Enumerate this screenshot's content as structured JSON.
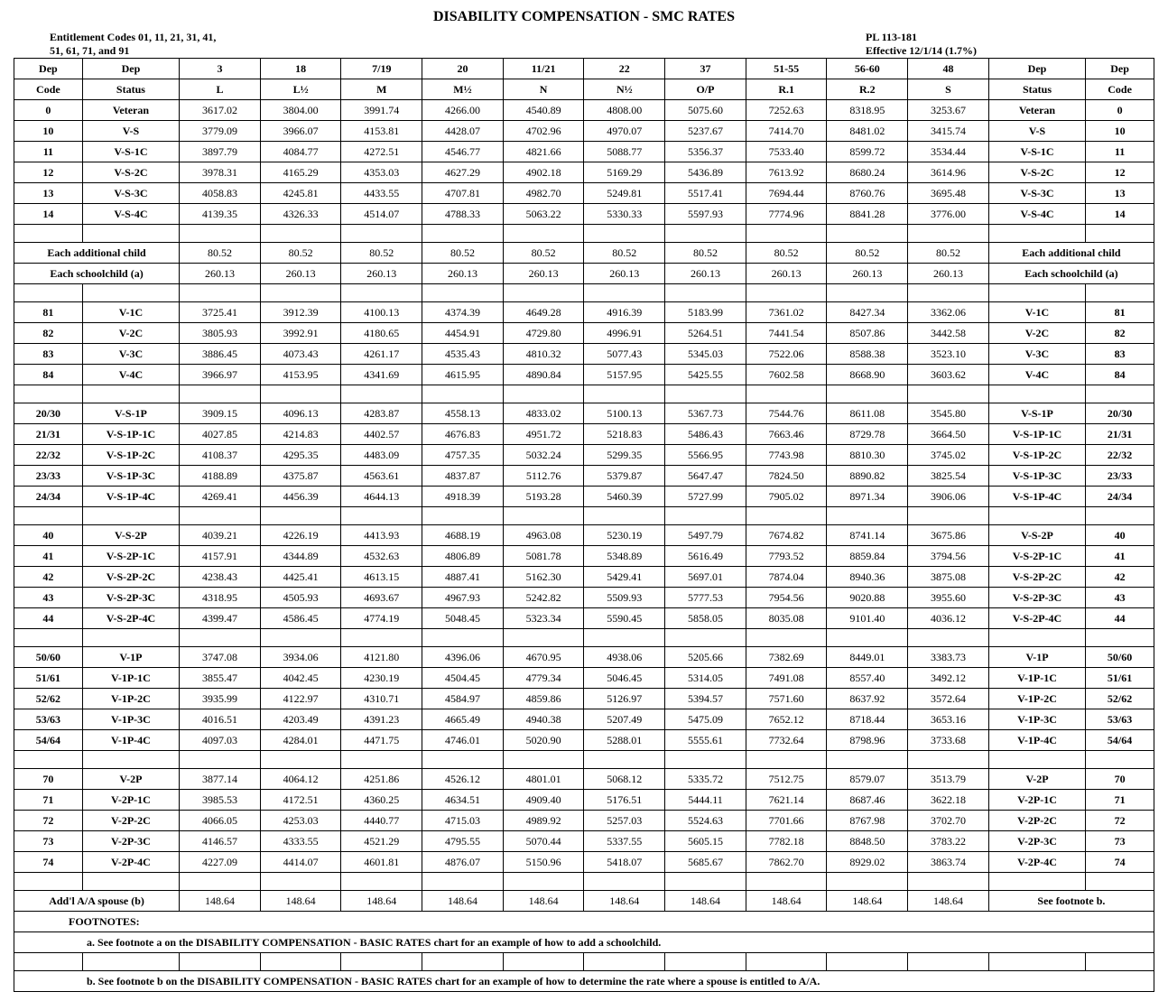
{
  "title": "DISABILITY COMPENSATION - SMC RATES",
  "header_left_1": "Entitlement Codes 01, 11, 21, 31, 41,",
  "header_left_2": "51, 61, 71, and 91",
  "header_right_1": "PL 113-181",
  "header_right_2": "Effective 12/1/14 (1.7%)",
  "col_heads_1": [
    "Dep",
    "Dep",
    "3",
    "18",
    "7/19",
    "20",
    "11/21",
    "22",
    "37",
    "51-55",
    "56-60",
    "48",
    "Dep",
    "Dep"
  ],
  "col_heads_2": [
    "Code",
    "Status",
    "L",
    "L½",
    "M",
    "M½",
    "N",
    "N½",
    "O/P",
    "R.1",
    "R.2",
    "S",
    "Status",
    "Code"
  ],
  "groups": [
    {
      "rows": [
        [
          "0",
          "Veteran",
          "3617.02",
          "3804.00",
          "3991.74",
          "4266.00",
          "4540.89",
          "4808.00",
          "5075.60",
          "7252.63",
          "8318.95",
          "3253.67",
          "Veteran",
          "0"
        ],
        [
          "10",
          "V-S",
          "3779.09",
          "3966.07",
          "4153.81",
          "4428.07",
          "4702.96",
          "4970.07",
          "5237.67",
          "7414.70",
          "8481.02",
          "3415.74",
          "V-S",
          "10"
        ],
        [
          "11",
          "V-S-1C",
          "3897.79",
          "4084.77",
          "4272.51",
          "4546.77",
          "4821.66",
          "5088.77",
          "5356.37",
          "7533.40",
          "8599.72",
          "3534.44",
          "V-S-1C",
          "11"
        ],
        [
          "12",
          "V-S-2C",
          "3978.31",
          "4165.29",
          "4353.03",
          "4627.29",
          "4902.18",
          "5169.29",
          "5436.89",
          "7613.92",
          "8680.24",
          "3614.96",
          "V-S-2C",
          "12"
        ],
        [
          "13",
          "V-S-3C",
          "4058.83",
          "4245.81",
          "4433.55",
          "4707.81",
          "4982.70",
          "5249.81",
          "5517.41",
          "7694.44",
          "8760.76",
          "3695.48",
          "V-S-3C",
          "13"
        ],
        [
          "14",
          "V-S-4C",
          "4139.35",
          "4326.33",
          "4514.07",
          "4788.33",
          "5063.22",
          "5330.33",
          "5597.93",
          "7774.96",
          "8841.28",
          "3776.00",
          "V-S-4C",
          "14"
        ]
      ]
    },
    {
      "rows": [
        [
          "81",
          "V-1C",
          "3725.41",
          "3912.39",
          "4100.13",
          "4374.39",
          "4649.28",
          "4916.39",
          "5183.99",
          "7361.02",
          "8427.34",
          "3362.06",
          "V-1C",
          "81"
        ],
        [
          "82",
          "V-2C",
          "3805.93",
          "3992.91",
          "4180.65",
          "4454.91",
          "4729.80",
          "4996.91",
          "5264.51",
          "7441.54",
          "8507.86",
          "3442.58",
          "V-2C",
          "82"
        ],
        [
          "83",
          "V-3C",
          "3886.45",
          "4073.43",
          "4261.17",
          "4535.43",
          "4810.32",
          "5077.43",
          "5345.03",
          "7522.06",
          "8588.38",
          "3523.10",
          "V-3C",
          "83"
        ],
        [
          "84",
          "V-4C",
          "3966.97",
          "4153.95",
          "4341.69",
          "4615.95",
          "4890.84",
          "5157.95",
          "5425.55",
          "7602.58",
          "8668.90",
          "3603.62",
          "V-4C",
          "84"
        ]
      ]
    },
    {
      "rows": [
        [
          "20/30",
          "V-S-1P",
          "3909.15",
          "4096.13",
          "4283.87",
          "4558.13",
          "4833.02",
          "5100.13",
          "5367.73",
          "7544.76",
          "8611.08",
          "3545.80",
          "V-S-1P",
          "20/30"
        ],
        [
          "21/31",
          "V-S-1P-1C",
          "4027.85",
          "4214.83",
          "4402.57",
          "4676.83",
          "4951.72",
          "5218.83",
          "5486.43",
          "7663.46",
          "8729.78",
          "3664.50",
          "V-S-1P-1C",
          "21/31"
        ],
        [
          "22/32",
          "V-S-1P-2C",
          "4108.37",
          "4295.35",
          "4483.09",
          "4757.35",
          "5032.24",
          "5299.35",
          "5566.95",
          "7743.98",
          "8810.30",
          "3745.02",
          "V-S-1P-2C",
          "22/32"
        ],
        [
          "23/33",
          "V-S-1P-3C",
          "4188.89",
          "4375.87",
          "4563.61",
          "4837.87",
          "5112.76",
          "5379.87",
          "5647.47",
          "7824.50",
          "8890.82",
          "3825.54",
          "V-S-1P-3C",
          "23/33"
        ],
        [
          "24/34",
          "V-S-1P-4C",
          "4269.41",
          "4456.39",
          "4644.13",
          "4918.39",
          "5193.28",
          "5460.39",
          "5727.99",
          "7905.02",
          "8971.34",
          "3906.06",
          "V-S-1P-4C",
          "24/34"
        ]
      ]
    },
    {
      "rows": [
        [
          "40",
          "V-S-2P",
          "4039.21",
          "4226.19",
          "4413.93",
          "4688.19",
          "4963.08",
          "5230.19",
          "5497.79",
          "7674.82",
          "8741.14",
          "3675.86",
          "V-S-2P",
          "40"
        ],
        [
          "41",
          "V-S-2P-1C",
          "4157.91",
          "4344.89",
          "4532.63",
          "4806.89",
          "5081.78",
          "5348.89",
          "5616.49",
          "7793.52",
          "8859.84",
          "3794.56",
          "V-S-2P-1C",
          "41"
        ],
        [
          "42",
          "V-S-2P-2C",
          "4238.43",
          "4425.41",
          "4613.15",
          "4887.41",
          "5162.30",
          "5429.41",
          "5697.01",
          "7874.04",
          "8940.36",
          "3875.08",
          "V-S-2P-2C",
          "42"
        ],
        [
          "43",
          "V-S-2P-3C",
          "4318.95",
          "4505.93",
          "4693.67",
          "4967.93",
          "5242.82",
          "5509.93",
          "5777.53",
          "7954.56",
          "9020.88",
          "3955.60",
          "V-S-2P-3C",
          "43"
        ],
        [
          "44",
          "V-S-2P-4C",
          "4399.47",
          "4586.45",
          "4774.19",
          "5048.45",
          "5323.34",
          "5590.45",
          "5858.05",
          "8035.08",
          "9101.40",
          "4036.12",
          "V-S-2P-4C",
          "44"
        ]
      ]
    },
    {
      "rows": [
        [
          "50/60",
          "V-1P",
          "3747.08",
          "3934.06",
          "4121.80",
          "4396.06",
          "4670.95",
          "4938.06",
          "5205.66",
          "7382.69",
          "8449.01",
          "3383.73",
          "V-1P",
          "50/60"
        ],
        [
          "51/61",
          "V-1P-1C",
          "3855.47",
          "4042.45",
          "4230.19",
          "4504.45",
          "4779.34",
          "5046.45",
          "5314.05",
          "7491.08",
          "8557.40",
          "3492.12",
          "V-1P-1C",
          "51/61"
        ],
        [
          "52/62",
          "V-1P-2C",
          "3935.99",
          "4122.97",
          "4310.71",
          "4584.97",
          "4859.86",
          "5126.97",
          "5394.57",
          "7571.60",
          "8637.92",
          "3572.64",
          "V-1P-2C",
          "52/62"
        ],
        [
          "53/63",
          "V-1P-3C",
          "4016.51",
          "4203.49",
          "4391.23",
          "4665.49",
          "4940.38",
          "5207.49",
          "5475.09",
          "7652.12",
          "8718.44",
          "3653.16",
          "V-1P-3C",
          "53/63"
        ],
        [
          "54/64",
          "V-1P-4C",
          "4097.03",
          "4284.01",
          "4471.75",
          "4746.01",
          "5020.90",
          "5288.01",
          "5555.61",
          "7732.64",
          "8798.96",
          "3733.68",
          "V-1P-4C",
          "54/64"
        ]
      ]
    },
    {
      "rows": [
        [
          "70",
          "V-2P",
          "3877.14",
          "4064.12",
          "4251.86",
          "4526.12",
          "4801.01",
          "5068.12",
          "5335.72",
          "7512.75",
          "8579.07",
          "3513.79",
          "V-2P",
          "70"
        ],
        [
          "71",
          "V-2P-1C",
          "3985.53",
          "4172.51",
          "4360.25",
          "4634.51",
          "4909.40",
          "5176.51",
          "5444.11",
          "7621.14",
          "8687.46",
          "3622.18",
          "V-2P-1C",
          "71"
        ],
        [
          "72",
          "V-2P-2C",
          "4066.05",
          "4253.03",
          "4440.77",
          "4715.03",
          "4989.92",
          "5257.03",
          "5524.63",
          "7701.66",
          "8767.98",
          "3702.70",
          "V-2P-2C",
          "72"
        ],
        [
          "73",
          "V-2P-3C",
          "4146.57",
          "4333.55",
          "4521.29",
          "4795.55",
          "5070.44",
          "5337.55",
          "5605.15",
          "7782.18",
          "8848.50",
          "3783.22",
          "V-2P-3C",
          "73"
        ],
        [
          "74",
          "V-2P-4C",
          "4227.09",
          "4414.07",
          "4601.81",
          "4876.07",
          "5150.96",
          "5418.07",
          "5685.67",
          "7862.70",
          "8929.02",
          "3863.74",
          "V-2P-4C",
          "74"
        ]
      ]
    }
  ],
  "each_add_child": {
    "label": "Each additional child",
    "vals": [
      "80.52",
      "80.52",
      "80.52",
      "80.52",
      "80.52",
      "80.52",
      "80.52",
      "80.52",
      "80.52",
      "80.52"
    ],
    "right": "Each additional child"
  },
  "each_school": {
    "label": "Each schoolchild  (a)",
    "vals": [
      "260.13",
      "260.13",
      "260.13",
      "260.13",
      "260.13",
      "260.13",
      "260.13",
      "260.13",
      "260.13",
      "260.13"
    ],
    "right": "Each schoolchild   (a)"
  },
  "addl_aa": {
    "label": "Add'l A/A spouse  (b)",
    "vals": [
      "148.64",
      "148.64",
      "148.64",
      "148.64",
      "148.64",
      "148.64",
      "148.64",
      "148.64",
      "148.64",
      "148.64"
    ],
    "right": "See footnote b."
  },
  "footnotes_label": "FOOTNOTES:",
  "footnote_a": "a.  See footnote a on the DISABILITY COMPENSATION - BASIC RATES chart for an example of how to add a schoolchild.",
  "footnote_b": "b.  See footnote b on the DISABILITY COMPENSATION - BASIC RATES chart for an example of how to determine the rate where a spouse is entitled to A/A."
}
